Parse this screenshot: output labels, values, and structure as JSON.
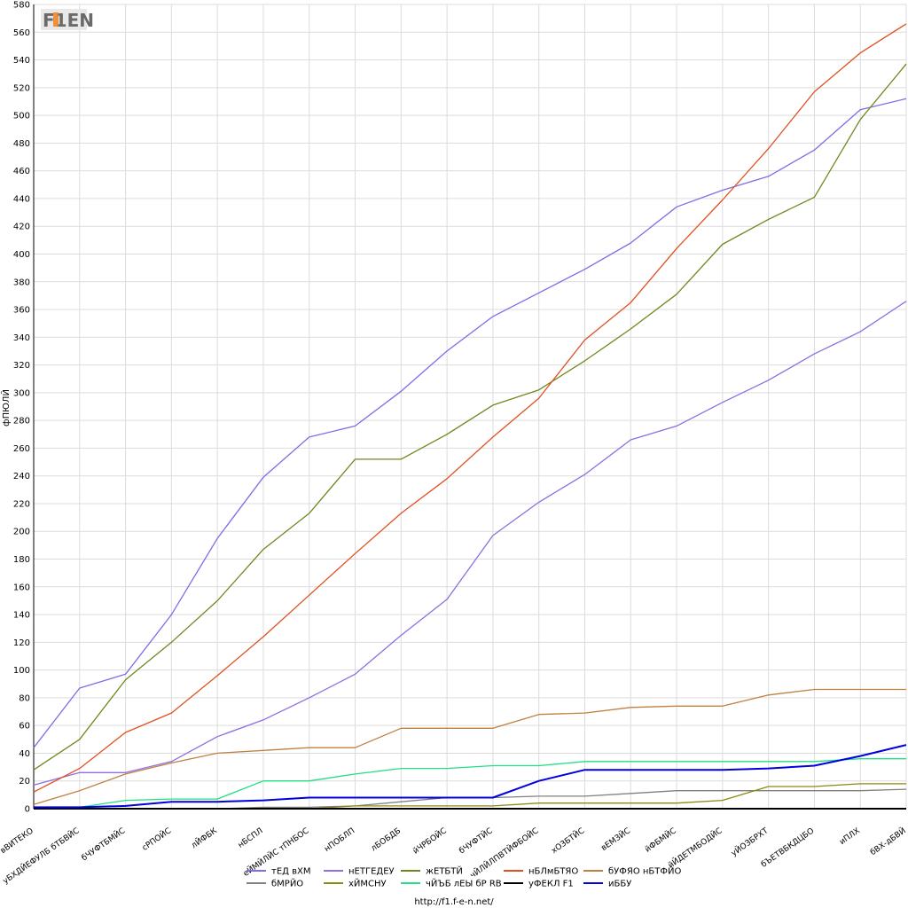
{
  "chart_data": {
    "type": "line",
    "ylabel": "фПЮЛЙ",
    "ylim": [
      0,
      580
    ],
    "ytick_step": 20,
    "grid": true,
    "legend_position": "bottom",
    "categories": [
      "вВИТЕКО",
      "уБХДЙЕФУЛБ бТБВЙС",
      "бЧУФТБМЙС",
      "сРПОЙС",
      "лЙФБК",
      "нБСПЛ",
      "еЙМЙЛЙС тПНБОС",
      "нПОБЛП",
      "лБОБДБ",
      "йЧРБОЙС",
      "бЧУФТЙС",
      "чЙЛЙЛПВТЙФБОЙС",
      "хОЗБТЙС",
      "вЕМЗЙС",
      "йФБМЙС",
      "йЙДЕТМБОДЙС",
      "уЙОЗБРХТ",
      "бЪЕТВБКДЦБО",
      "иПЛХ",
      "бВХ-дБВЙ"
    ],
    "series": [
      {
        "name": "тЕД вХМ",
        "color": "#7b6ee8",
        "values": [
          44,
          87,
          97,
          140,
          195,
          239,
          268,
          276,
          301,
          330,
          355,
          372,
          389,
          408,
          434,
          446,
          456,
          475,
          504,
          512
        ]
      },
      {
        "name": "нЕТГЕДЕУ",
        "color": "#8f6ee0",
        "values": [
          17,
          26,
          26,
          34,
          52,
          64,
          80,
          97,
          125,
          151,
          197,
          221,
          241,
          266,
          276,
          293,
          309,
          328,
          344,
          366
        ]
      },
      {
        "name": "жЕТБТЙ",
        "color": "#6b8a1e",
        "values": [
          28,
          50,
          93,
          120,
          150,
          187,
          213,
          252,
          252,
          270,
          291,
          302,
          323,
          346,
          371,
          407,
          425,
          441,
          497,
          537
        ]
      },
      {
        "name": "нБЛмБТЯО",
        "color": "#e05020",
        "values": [
          12,
          29,
          55,
          69,
          96,
          124,
          154,
          184,
          213,
          238,
          268,
          296,
          338,
          365,
          404,
          439,
          476,
          517,
          545,
          566
        ]
      },
      {
        "name": "бУФЯО нБТФЙО",
        "color": "#c08040",
        "values": [
          3,
          13,
          25,
          33,
          40,
          42,
          44,
          44,
          58,
          58,
          58,
          68,
          69,
          73,
          74,
          74,
          82,
          86,
          86,
          86
        ]
      },
      {
        "name": "бМРЙО",
        "color": "#808080",
        "values": [
          0,
          0,
          0,
          0,
          0,
          1,
          1,
          2,
          5,
          8,
          8,
          9,
          9,
          11,
          13,
          13,
          13,
          13,
          13,
          14
        ]
      },
      {
        "name": "хЙМСНУ",
        "color": "#8a8a10",
        "values": [
          0,
          0,
          0,
          0,
          0,
          0,
          0,
          2,
          2,
          2,
          2,
          4,
          4,
          4,
          4,
          6,
          16,
          16,
          18,
          18
        ]
      },
      {
        "name": "чЙЪБ лЕЫ бР RB",
        "color": "#20e080",
        "values": [
          1,
          1,
          6,
          7,
          7,
          20,
          20,
          25,
          29,
          29,
          31,
          31,
          34,
          34,
          34,
          34,
          34,
          34,
          36,
          36
        ]
      },
      {
        "name": "уФЕКЛ F1",
        "color": "#000000",
        "values": [
          0,
          0,
          0,
          0,
          0,
          0,
          0,
          0,
          0,
          0,
          0,
          0,
          0,
          0,
          0,
          0,
          0,
          0,
          0,
          0
        ]
      },
      {
        "name": "иББУ",
        "color": "#0000e0",
        "values": [
          1,
          1,
          2,
          5,
          5,
          6,
          8,
          8,
          8,
          8,
          8,
          20,
          28,
          28,
          28,
          28,
          29,
          31,
          38,
          46
        ]
      }
    ]
  },
  "footer": {
    "url": "http://f1.f-e-n.net/"
  },
  "logo": {
    "text": "F1EN"
  }
}
